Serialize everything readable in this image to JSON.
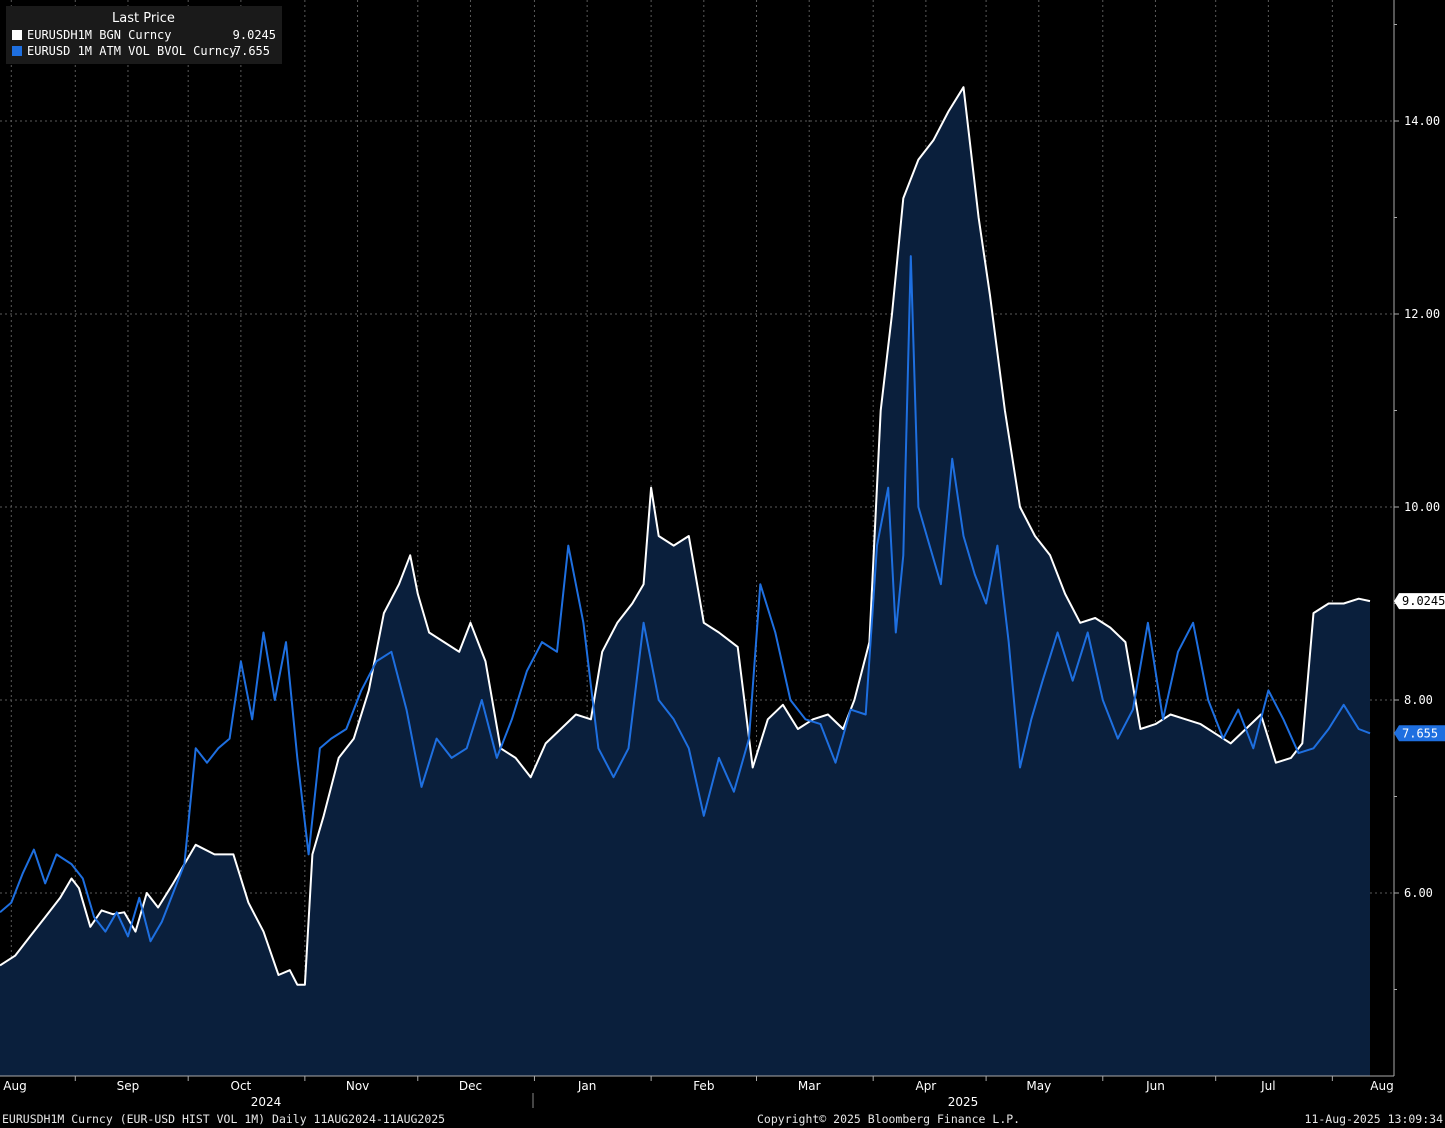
{
  "legend": {
    "title": "Last Price",
    "series_1_name": "EURUSDH1M BGN Curncy",
    "series_1_value": "9.0245",
    "series_2_name": "EURUSD 1M ATM VOL BVOL Curncy",
    "series_2_value": "7.655"
  },
  "footer": {
    "left": "EURUSDH1M Curncy (EUR-USD HIST VOL 1M)  Daily 11AUG2024-11AUG2025",
    "middle": "Copyright© 2025 Bloomberg Finance L.P.",
    "right": "11-Aug-2025 13:09:34"
  },
  "colors": {
    "background": "#000000",
    "area_fill": "#0a1f3c",
    "series_1": "#ffffff",
    "series_2": "#1e6fe0",
    "grid": "#5a5a5a"
  },
  "chart_data": {
    "type": "line",
    "x_unit": "date",
    "y_ticks": [
      "6.00",
      "8.00",
      "10.00",
      "12.00",
      "14.00"
    ],
    "x_month_labels": [
      "Aug",
      "Sep",
      "Oct",
      "Nov",
      "Dec",
      "Jan",
      "Feb",
      "Mar",
      "Apr",
      "May",
      "Jun",
      "Jul",
      "Aug"
    ],
    "x_year_labels": [
      "2024",
      "2025"
    ],
    "grid": "on",
    "legend_position": "top-left",
    "last_value_tags": [
      "9.0245",
      "7.655"
    ],
    "series": [
      {
        "name": "EURUSDH1M BGN Curncy",
        "area_fill": true,
        "points": [
          [
            "2024-08-12",
            5.25
          ],
          [
            "2024-08-16",
            5.35
          ],
          [
            "2024-08-20",
            5.55
          ],
          [
            "2024-08-24",
            5.75
          ],
          [
            "2024-08-28",
            5.95
          ],
          [
            "2024-08-31",
            6.15
          ],
          [
            "2024-09-02",
            6.05
          ],
          [
            "2024-09-05",
            5.65
          ],
          [
            "2024-09-08",
            5.82
          ],
          [
            "2024-09-11",
            5.78
          ],
          [
            "2024-09-14",
            5.8
          ],
          [
            "2024-09-17",
            5.6
          ],
          [
            "2024-09-20",
            6.0
          ],
          [
            "2024-09-23",
            5.85
          ],
          [
            "2024-09-27",
            6.1
          ],
          [
            "2024-09-30",
            6.3
          ],
          [
            "2024-10-03",
            6.5
          ],
          [
            "2024-10-08",
            6.4
          ],
          [
            "2024-10-13",
            6.4
          ],
          [
            "2024-10-17",
            5.9
          ],
          [
            "2024-10-21",
            5.6
          ],
          [
            "2024-10-25",
            5.15
          ],
          [
            "2024-10-28",
            5.2
          ],
          [
            "2024-10-30",
            5.05
          ],
          [
            "2024-11-01",
            5.05
          ],
          [
            "2024-11-03",
            6.4
          ],
          [
            "2024-11-06",
            6.8
          ],
          [
            "2024-11-10",
            7.4
          ],
          [
            "2024-11-14",
            7.6
          ],
          [
            "2024-11-18",
            8.1
          ],
          [
            "2024-11-22",
            8.9
          ],
          [
            "2024-11-26",
            9.2
          ],
          [
            "2024-11-29",
            9.5
          ],
          [
            "2024-12-01",
            9.1
          ],
          [
            "2024-12-04",
            8.7
          ],
          [
            "2024-12-08",
            8.6
          ],
          [
            "2024-12-12",
            8.5
          ],
          [
            "2024-12-15",
            8.8
          ],
          [
            "2024-12-19",
            8.4
          ],
          [
            "2024-12-23",
            7.5
          ],
          [
            "2024-12-27",
            7.4
          ],
          [
            "2024-12-31",
            7.2
          ],
          [
            "2025-01-04",
            7.55
          ],
          [
            "2025-01-08",
            7.7
          ],
          [
            "2025-01-12",
            7.85
          ],
          [
            "2025-01-16",
            7.8
          ],
          [
            "2025-01-19",
            8.5
          ],
          [
            "2025-01-23",
            8.8
          ],
          [
            "2025-01-27",
            9.0
          ],
          [
            "2025-01-30",
            9.2
          ],
          [
            "2025-02-01",
            10.2
          ],
          [
            "2025-02-03",
            9.7
          ],
          [
            "2025-02-07",
            9.6
          ],
          [
            "2025-02-11",
            9.7
          ],
          [
            "2025-02-15",
            8.8
          ],
          [
            "2025-02-19",
            8.7
          ],
          [
            "2025-02-24",
            8.55
          ],
          [
            "2025-02-28",
            7.3
          ],
          [
            "2025-03-04",
            7.8
          ],
          [
            "2025-03-08",
            7.95
          ],
          [
            "2025-03-12",
            7.7
          ],
          [
            "2025-03-16",
            7.8
          ],
          [
            "2025-03-20",
            7.85
          ],
          [
            "2025-03-24",
            7.7
          ],
          [
            "2025-03-27",
            8.0
          ],
          [
            "2025-03-31",
            8.6
          ],
          [
            "2025-04-03",
            11.0
          ],
          [
            "2025-04-06",
            12.0
          ],
          [
            "2025-04-09",
            13.2
          ],
          [
            "2025-04-13",
            13.6
          ],
          [
            "2025-04-17",
            13.8
          ],
          [
            "2025-04-21",
            14.1
          ],
          [
            "2025-04-25",
            14.35
          ],
          [
            "2025-04-29",
            13.0
          ],
          [
            "2025-05-02",
            12.2
          ],
          [
            "2025-05-06",
            11.0
          ],
          [
            "2025-05-10",
            10.0
          ],
          [
            "2025-05-14",
            9.7
          ],
          [
            "2025-05-18",
            9.5
          ],
          [
            "2025-05-22",
            9.1
          ],
          [
            "2025-05-26",
            8.8
          ],
          [
            "2025-05-30",
            8.85
          ],
          [
            "2025-06-03",
            8.75
          ],
          [
            "2025-06-07",
            8.6
          ],
          [
            "2025-06-11",
            7.7
          ],
          [
            "2025-06-15",
            7.75
          ],
          [
            "2025-06-19",
            7.85
          ],
          [
            "2025-06-23",
            7.8
          ],
          [
            "2025-06-27",
            7.75
          ],
          [
            "2025-07-01",
            7.65
          ],
          [
            "2025-07-05",
            7.55
          ],
          [
            "2025-07-09",
            7.7
          ],
          [
            "2025-07-13",
            7.85
          ],
          [
            "2025-07-17",
            7.35
          ],
          [
            "2025-07-21",
            7.4
          ],
          [
            "2025-07-24",
            7.55
          ],
          [
            "2025-07-27",
            8.9
          ],
          [
            "2025-07-31",
            9.0
          ],
          [
            "2025-08-04",
            9.0
          ],
          [
            "2025-08-08",
            9.05
          ],
          [
            "2025-08-11",
            9.0245
          ]
        ]
      },
      {
        "name": "EURUSD 1M ATM VOL BVOL Curncy",
        "area_fill": false,
        "points": [
          [
            "2024-08-12",
            5.8
          ],
          [
            "2024-08-15",
            5.9
          ],
          [
            "2024-08-18",
            6.2
          ],
          [
            "2024-08-21",
            6.45
          ],
          [
            "2024-08-24",
            6.1
          ],
          [
            "2024-08-27",
            6.4
          ],
          [
            "2024-08-31",
            6.3
          ],
          [
            "2024-09-03",
            6.15
          ],
          [
            "2024-09-06",
            5.75
          ],
          [
            "2024-09-09",
            5.6
          ],
          [
            "2024-09-12",
            5.8
          ],
          [
            "2024-09-15",
            5.55
          ],
          [
            "2024-09-18",
            5.95
          ],
          [
            "2024-09-21",
            5.5
          ],
          [
            "2024-09-24",
            5.7
          ],
          [
            "2024-09-27",
            6.0
          ],
          [
            "2024-09-30",
            6.3
          ],
          [
            "2024-10-03",
            7.5
          ],
          [
            "2024-10-06",
            7.35
          ],
          [
            "2024-10-09",
            7.5
          ],
          [
            "2024-10-12",
            7.6
          ],
          [
            "2024-10-15",
            8.4
          ],
          [
            "2024-10-18",
            7.8
          ],
          [
            "2024-10-21",
            8.7
          ],
          [
            "2024-10-24",
            8.0
          ],
          [
            "2024-10-27",
            8.6
          ],
          [
            "2024-10-30",
            7.4
          ],
          [
            "2024-11-02",
            6.4
          ],
          [
            "2024-11-05",
            7.5
          ],
          [
            "2024-11-08",
            7.6
          ],
          [
            "2024-11-12",
            7.7
          ],
          [
            "2024-11-16",
            8.1
          ],
          [
            "2024-11-20",
            8.4
          ],
          [
            "2024-11-24",
            8.5
          ],
          [
            "2024-11-28",
            7.9
          ],
          [
            "2024-12-02",
            7.1
          ],
          [
            "2024-12-06",
            7.6
          ],
          [
            "2024-12-10",
            7.4
          ],
          [
            "2024-12-14",
            7.5
          ],
          [
            "2024-12-18",
            8.0
          ],
          [
            "2024-12-22",
            7.4
          ],
          [
            "2024-12-26",
            7.8
          ],
          [
            "2024-12-30",
            8.3
          ],
          [
            "2025-01-03",
            8.6
          ],
          [
            "2025-01-07",
            8.5
          ],
          [
            "2025-01-10",
            9.6
          ],
          [
            "2025-01-14",
            8.8
          ],
          [
            "2025-01-18",
            7.5
          ],
          [
            "2025-01-22",
            7.2
          ],
          [
            "2025-01-26",
            7.5
          ],
          [
            "2025-01-30",
            8.8
          ],
          [
            "2025-02-03",
            8.0
          ],
          [
            "2025-02-07",
            7.8
          ],
          [
            "2025-02-11",
            7.5
          ],
          [
            "2025-02-15",
            6.8
          ],
          [
            "2025-02-19",
            7.4
          ],
          [
            "2025-02-23",
            7.05
          ],
          [
            "2025-02-27",
            7.6
          ],
          [
            "2025-03-02",
            9.2
          ],
          [
            "2025-03-06",
            8.7
          ],
          [
            "2025-03-10",
            8.0
          ],
          [
            "2025-03-14",
            7.8
          ],
          [
            "2025-03-18",
            7.75
          ],
          [
            "2025-03-22",
            7.35
          ],
          [
            "2025-03-26",
            7.9
          ],
          [
            "2025-03-30",
            7.85
          ],
          [
            "2025-04-02",
            9.6
          ],
          [
            "2025-04-05",
            10.2
          ],
          [
            "2025-04-07",
            8.7
          ],
          [
            "2025-04-09",
            9.5
          ],
          [
            "2025-04-11",
            12.6
          ],
          [
            "2025-04-13",
            10.0
          ],
          [
            "2025-04-16",
            9.6
          ],
          [
            "2025-04-19",
            9.2
          ],
          [
            "2025-04-22",
            10.5
          ],
          [
            "2025-04-25",
            9.7
          ],
          [
            "2025-04-28",
            9.3
          ],
          [
            "2025-05-01",
            9.0
          ],
          [
            "2025-05-04",
            9.6
          ],
          [
            "2025-05-07",
            8.6
          ],
          [
            "2025-05-10",
            7.3
          ],
          [
            "2025-05-13",
            7.8
          ],
          [
            "2025-05-16",
            8.2
          ],
          [
            "2025-05-20",
            8.7
          ],
          [
            "2025-05-24",
            8.2
          ],
          [
            "2025-05-28",
            8.7
          ],
          [
            "2025-06-01",
            8.0
          ],
          [
            "2025-06-05",
            7.6
          ],
          [
            "2025-06-09",
            7.9
          ],
          [
            "2025-06-13",
            8.8
          ],
          [
            "2025-06-17",
            7.8
          ],
          [
            "2025-06-21",
            8.5
          ],
          [
            "2025-06-25",
            8.8
          ],
          [
            "2025-06-29",
            8.0
          ],
          [
            "2025-07-03",
            7.6
          ],
          [
            "2025-07-07",
            7.9
          ],
          [
            "2025-07-11",
            7.5
          ],
          [
            "2025-07-15",
            8.1
          ],
          [
            "2025-07-19",
            7.8
          ],
          [
            "2025-07-23",
            7.45
          ],
          [
            "2025-07-27",
            7.5
          ],
          [
            "2025-07-31",
            7.7
          ],
          [
            "2025-08-04",
            7.95
          ],
          [
            "2025-08-08",
            7.7
          ],
          [
            "2025-08-11",
            7.655
          ]
        ]
      }
    ]
  }
}
